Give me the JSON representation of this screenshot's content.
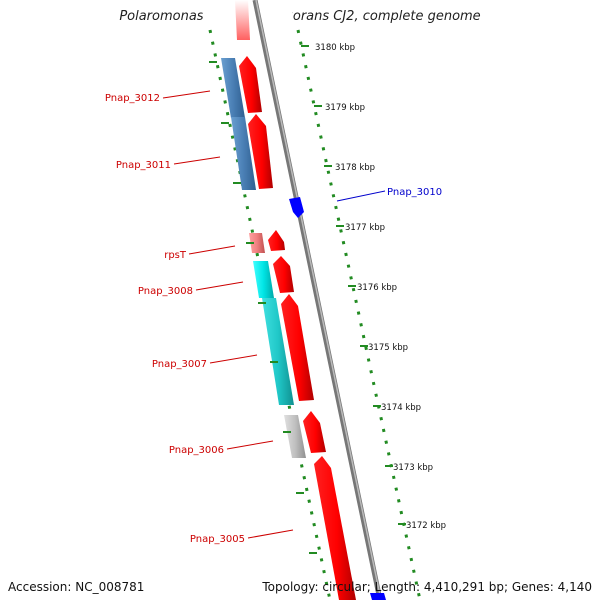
{
  "title": "Polaromonas naphthalenivorans CJ2, complete genome",
  "footer": {
    "accession": "Accession: NC_008781",
    "topology": "Topology: circular; Length: 4,410,291 bp; Genes: 4,140"
  },
  "colors": {
    "forward_cds": "#ff0000",
    "reverse_cds": "#4a7fb5",
    "reverse_rna": "#f08080",
    "reverse_cyan": "#00e0e0",
    "reverse_teal": "#20c8c8",
    "reverse_gray": "#c0c0c0",
    "highlight_gene": "#0000ff",
    "backbone": "#888888",
    "ticks": "#228b22",
    "label_red": "#cc0000",
    "label_blue": "#0000cc",
    "scale_text": "#111111"
  },
  "scale_ticks": [
    "3180 kbp",
    "3179 kbp",
    "3178 kbp",
    "3177 kbp",
    "3176 kbp",
    "3175 kbp",
    "3174 kbp",
    "3173 kbp",
    "3172 kbp"
  ],
  "gene_labels": [
    {
      "name": "Pnap_3012",
      "color": "red"
    },
    {
      "name": "Pnap_3011",
      "color": "red"
    },
    {
      "name": "Pnap_3010",
      "color": "blue"
    },
    {
      "name": "rpsT",
      "color": "red"
    },
    {
      "name": "Pnap_3008",
      "color": "red"
    },
    {
      "name": "Pnap_3007",
      "color": "red"
    },
    {
      "name": "Pnap_3006",
      "color": "red"
    },
    {
      "name": "Pnap_3005",
      "color": "red"
    }
  ],
  "features": {
    "forward": [
      "gene-f1",
      "gene-f2",
      "gene-f3",
      "gene-f4",
      "gene-f5",
      "gene-f6",
      "gene-f7",
      "gene-f8"
    ],
    "reverse": [
      "Pnap_3012",
      "Pnap_3011",
      "rpsT",
      "Pnap_3008",
      "Pnap_3007",
      "Pnap_3006"
    ],
    "highlight": [
      "Pnap_3010"
    ]
  }
}
